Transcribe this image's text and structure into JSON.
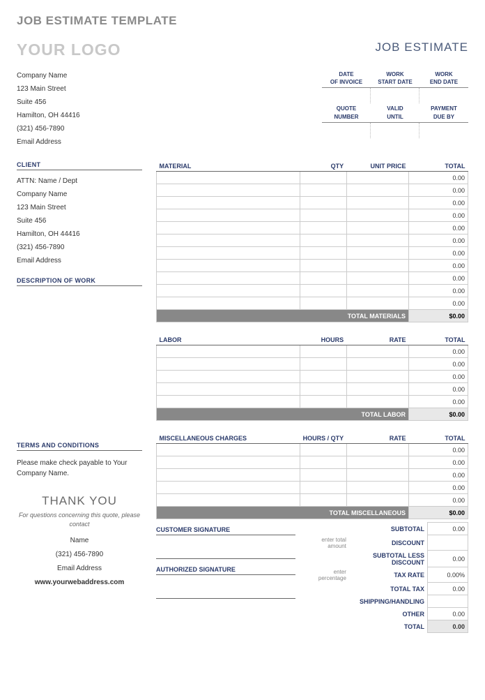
{
  "page_title": "JOB ESTIMATE TEMPLATE",
  "logo_placeholder": "YOUR LOGO",
  "header_label": "JOB ESTIMATE",
  "colors": {
    "heading_gray": "#8a8a8a",
    "logo_gray": "#c8c8c8",
    "navy": "#2a3a6a",
    "header_navy": "#4a5a7a",
    "total_row_bg": "#888888",
    "total_val_bg": "#e8e8e8",
    "border": "#cccccc"
  },
  "company": {
    "name": "Company Name",
    "street": "123 Main Street",
    "suite": "Suite 456",
    "city": "Hamilton, OH  44416",
    "phone": "(321) 456-7890",
    "email": "Email Address"
  },
  "date_headers": {
    "row1": [
      "DATE OF INVOICE",
      "WORK START DATE",
      "WORK END DATE"
    ],
    "row2": [
      "QUOTE NUMBER",
      "VALID UNTIL",
      "PAYMENT DUE BY"
    ]
  },
  "sections": {
    "client": "CLIENT",
    "material": "MATERIAL",
    "qty": "QTY",
    "unit_price": "UNIT PRICE",
    "total": "TOTAL",
    "desc_work": "DESCRIPTION OF WORK",
    "labor": "LABOR",
    "hours": "HOURS",
    "rate": "RATE",
    "terms": "TERMS AND CONDITIONS",
    "misc": "MISCELLANEOUS CHARGES",
    "hours_qty": "HOURS / QTY",
    "customer_sig": "CUSTOMER SIGNATURE",
    "auth_sig": "AUTHORIZED SIGNATURE"
  },
  "client": {
    "attn": "ATTN: Name / Dept",
    "company": "Company Name",
    "street": "123 Main Street",
    "suite": "Suite 456",
    "city": "Hamilton, OH  44416",
    "phone": "(321) 456-7890",
    "email": "Email Address"
  },
  "material_rows": 11,
  "labor_rows": 5,
  "misc_rows": 5,
  "default_total": "0.00",
  "totals": {
    "materials_label": "TOTAL MATERIALS",
    "materials_val": "$0.00",
    "labor_label": "TOTAL LABOR",
    "labor_val": "$0.00",
    "misc_label": "TOTAL MISCELLANEOUS",
    "misc_val": "$0.00"
  },
  "terms_text": "Please make check payable to Your Company Name.",
  "thank_you": "THANK YOU",
  "contact_note": "For questions concerning this quote, please contact",
  "contact": {
    "name": "Name",
    "phone": "(321) 456-7890",
    "email": "Email Address",
    "web": "www.yourwebaddress.com"
  },
  "summary": {
    "subtotal": "SUBTOTAL",
    "discount_hint": "enter total amount",
    "discount": "DISCOUNT",
    "subtotal_less": "SUBTOTAL LESS DISCOUNT",
    "taxrate_hint": "enter percentage",
    "taxrate": "TAX RATE",
    "taxrate_val": "0.00%",
    "total_tax": "TOTAL TAX",
    "shipping": "SHIPPING/HANDLING",
    "other": "OTHER",
    "total": "TOTAL",
    "zero": "0.00"
  }
}
